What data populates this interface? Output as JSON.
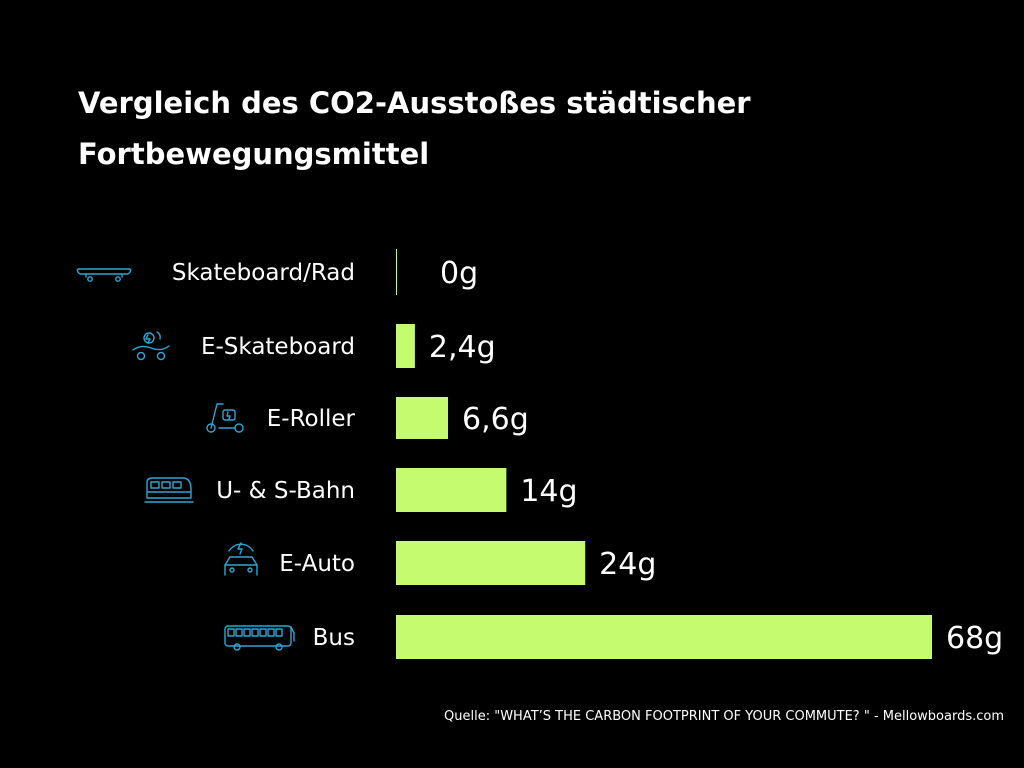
{
  "colors": {
    "background": "#000000",
    "bar": "#c5fb6f",
    "icon": "#2aa7d6",
    "text": "#ffffff"
  },
  "chart_data": {
    "type": "bar",
    "orientation": "horizontal",
    "title": "Vergleich des CO2-Ausstoßes städtischer Fortbewegungsmittel",
    "categories": [
      "Skateboard/Rad",
      "E-Skateboard",
      "E-Roller",
      "U- & S-Bahn",
      "E-Auto",
      "Bus"
    ],
    "values": [
      0,
      2.4,
      6.6,
      14,
      24,
      68
    ],
    "value_labels": [
      "0g",
      "2,4g",
      "6,6g",
      "14g",
      "24g",
      "68g"
    ],
    "icons": [
      "skateboard-icon",
      "e-skateboard-icon",
      "e-scooter-icon",
      "train-icon",
      "electric-car-icon",
      "bus-icon"
    ],
    "xlim": [
      0,
      68
    ],
    "grid": false,
    "legend": "none"
  },
  "source": "Quelle: \"WHAT’S THE CARBON FOOTPRINT OF YOUR COMMUTE? \" -  Mellowboards.com"
}
